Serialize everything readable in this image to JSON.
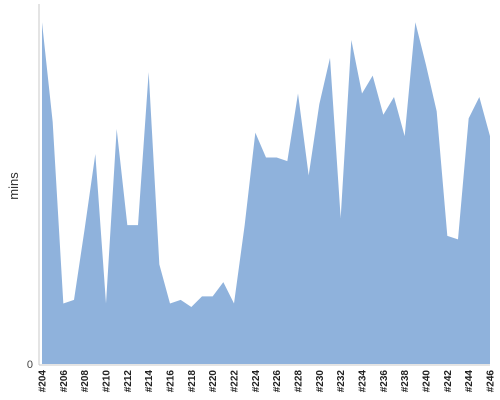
{
  "chart_data": {
    "type": "area",
    "title": "",
    "xlabel": "",
    "ylabel": "mins",
    "ylim": [
      0,
      100
    ],
    "grid": false,
    "legend": "none",
    "color": "#8fb2dc",
    "x": [
      "#204",
      "#205",
      "#206",
      "#207",
      "#208",
      "#209",
      "#210",
      "#211",
      "#212",
      "#213",
      "#214",
      "#215",
      "#216",
      "#217",
      "#218",
      "#219",
      "#220",
      "#221",
      "#222",
      "#223",
      "#224",
      "#225",
      "#226",
      "#227",
      "#228",
      "#229",
      "#230",
      "#231",
      "#232",
      "#233",
      "#234",
      "#235",
      "#236",
      "#237",
      "#238",
      "#239",
      "#240",
      "#241",
      "#242",
      "#243",
      "#244",
      "#245",
      "#246"
    ],
    "x_tick_labels": [
      "#204",
      "#206",
      "#208",
      "#210",
      "#212",
      "#214",
      "#216",
      "#218",
      "#220",
      "#222",
      "#224",
      "#226",
      "#228",
      "#230",
      "#232",
      "#234",
      "#236",
      "#238",
      "#240",
      "#242",
      "#244",
      "#246"
    ],
    "y_tick_labels": [
      "0"
    ],
    "series": [
      {
        "values": [
          96,
          68,
          17,
          18,
          38,
          59,
          17,
          66,
          39,
          39,
          82,
          28,
          17,
          18,
          16,
          19,
          19,
          23,
          17,
          39,
          65,
          58,
          58,
          57,
          76,
          53,
          73,
          86,
          41,
          91,
          76,
          81,
          70,
          75,
          64,
          96,
          84,
          71,
          36,
          35,
          69,
          75,
          64
        ]
      }
    ]
  }
}
